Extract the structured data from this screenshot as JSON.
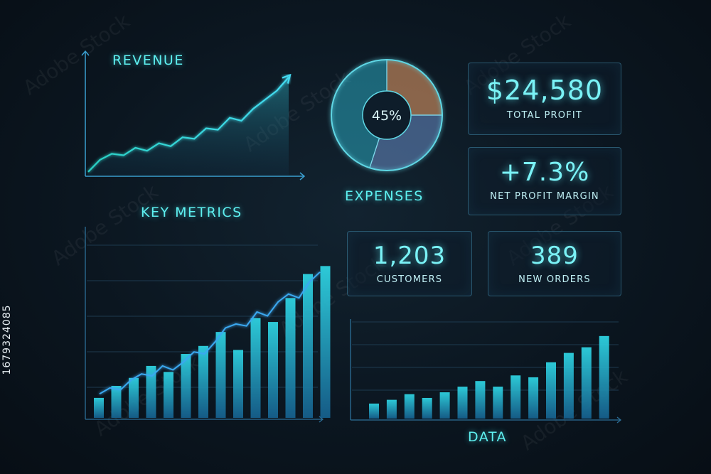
{
  "revenue": {
    "title": "REVENUE"
  },
  "expenses": {
    "title": "EXPENSES",
    "percent_label": "45%"
  },
  "key_metrics": {
    "title": "KEY METRICS"
  },
  "data_panel": {
    "title": "DATA"
  },
  "stats": {
    "total_profit": {
      "value": "$24,580",
      "label": "TOTAL PROFIT"
    },
    "net_margin": {
      "value": "+7.3%",
      "label": "NET PROFIT MARGIN"
    },
    "customers": {
      "value": "1,203",
      "label": "CUSTOMERS"
    },
    "new_orders": {
      "value": "389",
      "label": "NEW ORDERS"
    }
  },
  "side_label": "1679324085",
  "watermark_text": "Adobe Stock",
  "colors": {
    "accent": "#5ef0f0",
    "line": "#3ee0ee",
    "bar_top": "#2fd8e6",
    "bar_bottom": "#16618f"
  },
  "chart_data": [
    {
      "id": "revenue",
      "type": "area",
      "x": [
        0,
        1,
        2,
        3,
        4,
        5,
        6,
        7,
        8,
        9,
        10,
        11,
        12,
        13,
        14,
        15,
        16,
        17
      ],
      "values": [
        2,
        10,
        14,
        13,
        18,
        16,
        21,
        19,
        25,
        24,
        31,
        30,
        38,
        36,
        44,
        50,
        56,
        65
      ],
      "ylim": [
        0,
        70
      ],
      "title": "REVENUE",
      "arrow": true
    },
    {
      "id": "expenses",
      "type": "pie",
      "slices": [
        {
          "value": 25,
          "color": "#f0a36a"
        },
        {
          "value": 30,
          "color": "#6a8ec8"
        },
        {
          "value": 45,
          "color": "#2aa6bd"
        }
      ],
      "center_label": "45%",
      "title": "EXPENSES"
    },
    {
      "id": "key_metrics",
      "type": "bar",
      "values": [
        10,
        16,
        20,
        26,
        23,
        32,
        36,
        43,
        34,
        50,
        48,
        60,
        72,
        76
      ],
      "line": [
        12,
        15,
        14,
        19,
        22,
        21,
        26,
        24,
        28,
        33,
        32,
        38,
        45,
        47,
        46,
        53,
        51,
        58,
        62,
        60,
        68,
        73
      ],
      "ylim": [
        0,
        90
      ],
      "title": "KEY METRICS"
    },
    {
      "id": "data",
      "type": "bar",
      "values": [
        8,
        10,
        13,
        11,
        14,
        17,
        20,
        17,
        23,
        22,
        30,
        35,
        38,
        44
      ],
      "ylim": [
        0,
        50
      ],
      "title": "DATA"
    }
  ]
}
